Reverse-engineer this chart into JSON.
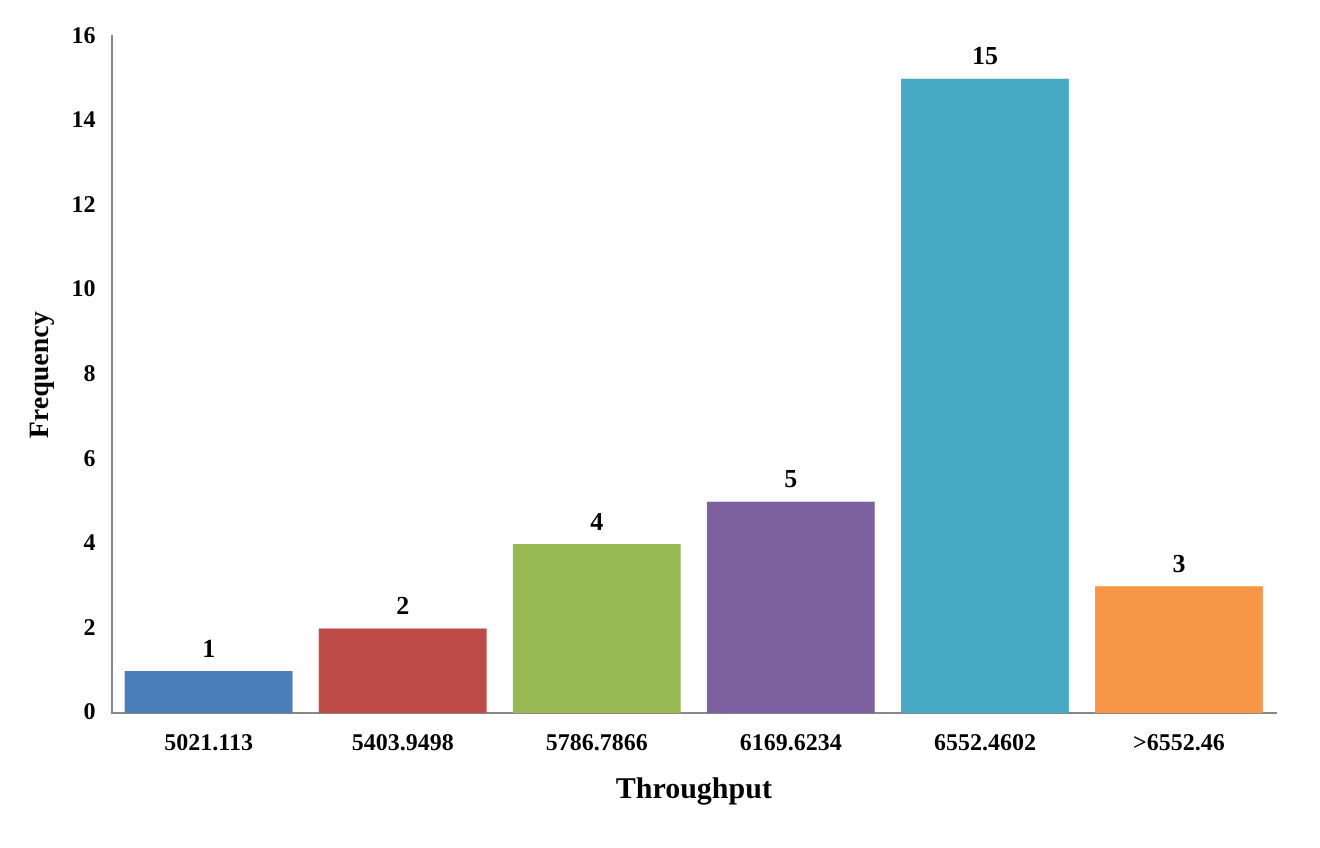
{
  "chart_data": {
    "type": "bar",
    "xlabel": "Throughput",
    "ylabel": "Frequency",
    "categories": [
      "5021.113",
      "5403.9498",
      "5786.7866",
      "6169.6234",
      "6552.4602",
      ">6552.46"
    ],
    "values": [
      1,
      2,
      4,
      5,
      15,
      3
    ],
    "colors": [
      "#4a7ebb",
      "#be4b48",
      "#98b954",
      "#7d60a0",
      "#46aac5",
      "#f79646"
    ],
    "ylim": [
      0,
      16
    ],
    "yticks": [
      0,
      2,
      4,
      6,
      8,
      10,
      12,
      14,
      16
    ],
    "data_labels": true,
    "grid": false,
    "legend": false
  }
}
